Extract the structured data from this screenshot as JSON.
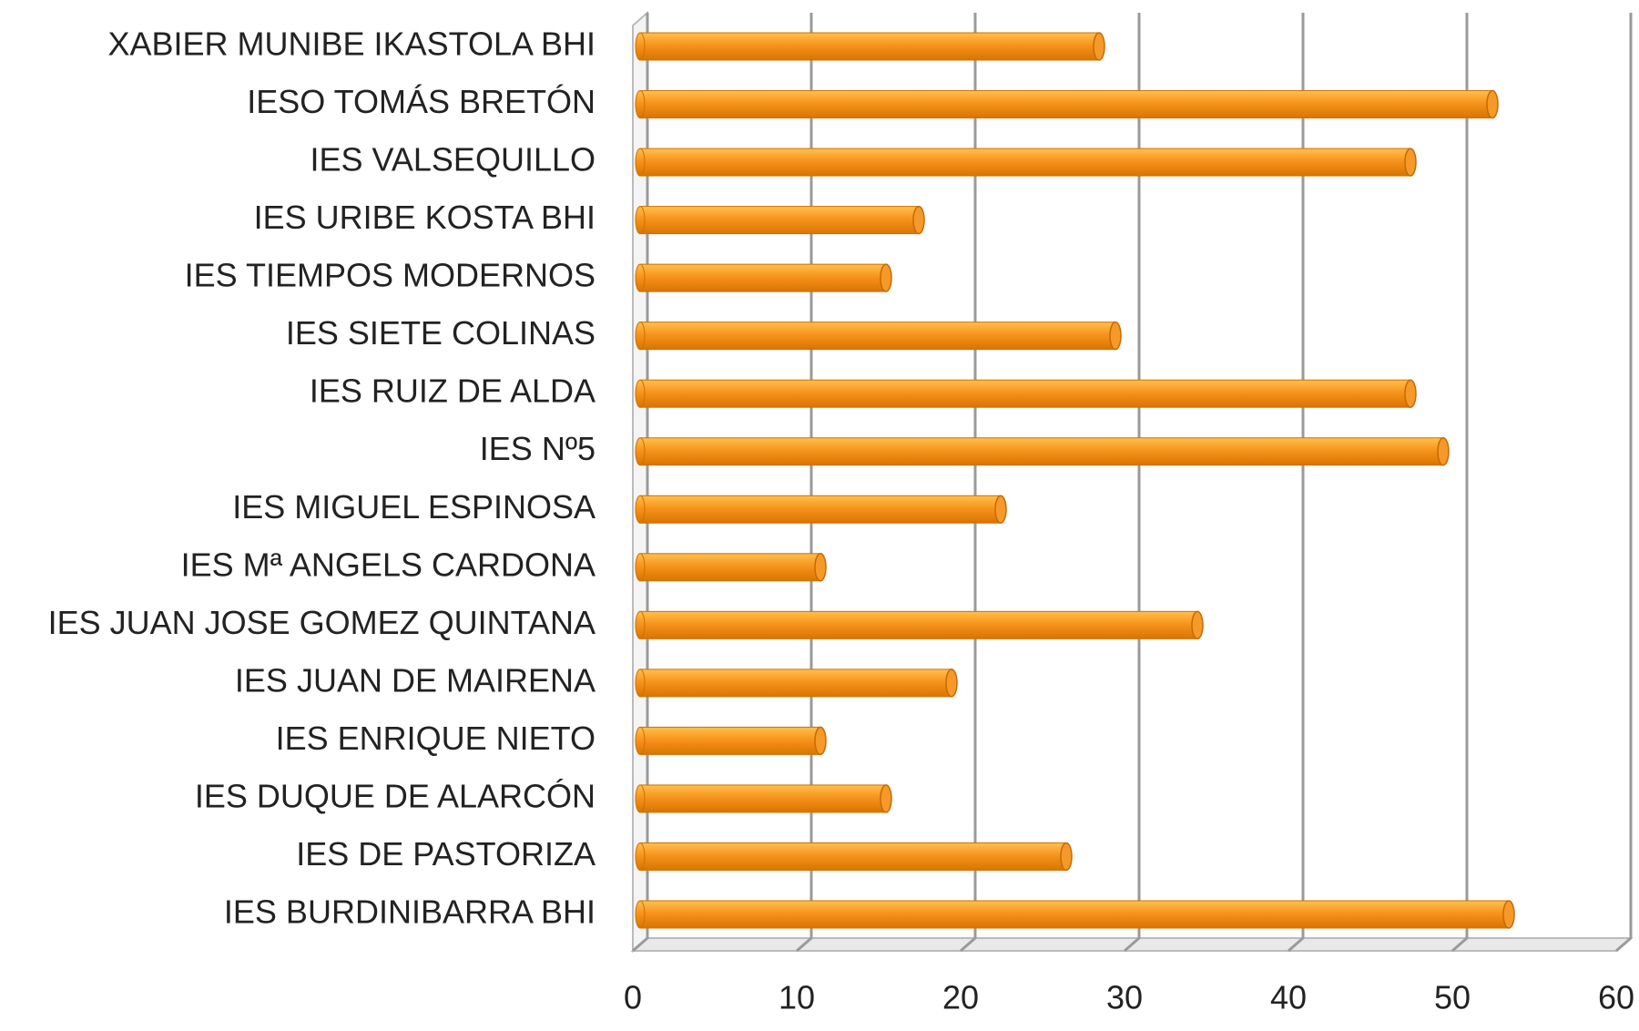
{
  "chart_data": {
    "type": "bar",
    "orientation": "horizontal",
    "categories": [
      "XABIER MUNIBE IKASTOLA BHI",
      "IESO TOMÁS BRETÓN",
      "IES VALSEQUILLO",
      "IES URIBE KOSTA BHI",
      "IES TIEMPOS MODERNOS",
      "IES SIETE COLINAS",
      "IES RUIZ DE ALDA",
      "IES Nº5",
      "IES MIGUEL ESPINOSA",
      "IES Mª ANGELS CARDONA",
      "IES JUAN JOSE GOMEZ QUINTANA",
      "IES JUAN DE MAIRENA",
      "IES ENRIQUE NIETO",
      "IES DUQUE DE ALARCÓN",
      "IES DE PASTORIZA",
      "IES BURDINIBARRA BHI"
    ],
    "values": [
      28,
      52,
      47,
      17,
      15,
      29,
      47,
      49,
      22,
      11,
      34,
      19,
      11,
      15,
      26,
      53
    ],
    "color": "#f7941d",
    "xlim": [
      0,
      60
    ],
    "xticks": [
      0,
      10,
      20,
      30,
      40,
      50,
      60
    ],
    "grid": true
  }
}
